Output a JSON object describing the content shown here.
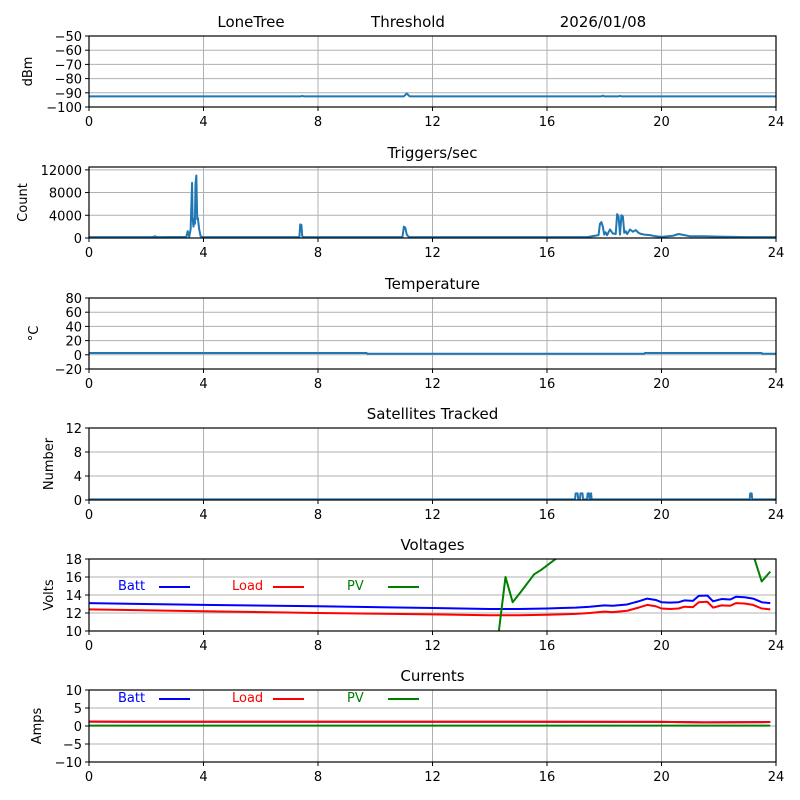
{
  "header": {
    "station": "LoneTree",
    "mode": "Threshold",
    "date": "2026/01/08"
  },
  "colors": {
    "series_default": "#1f77b4",
    "batt": "#0000ff",
    "load": "#ff0000",
    "pv": "#008000",
    "grid": "#b0b0b0"
  },
  "chart_data": [
    {
      "id": "signal",
      "type": "line",
      "title": "",
      "xlabel": "",
      "ylabel": "dBm",
      "xlim": [
        0,
        24
      ],
      "ylim": [
        -100,
        -50
      ],
      "xticks": [
        0,
        4,
        8,
        12,
        16,
        20,
        24
      ],
      "yticks": [
        -100,
        -90,
        -80,
        -70,
        -60,
        -50
      ],
      "ytick_labels": [
        "−100",
        "−90",
        "−80",
        "−70",
        "−60",
        "−50"
      ],
      "grid": true,
      "series": [
        {
          "name": "dBm",
          "color": "#1f77b4",
          "x": [
            0,
            7.4,
            7.45,
            7.5,
            11.0,
            11.05,
            11.1,
            11.15,
            11.2,
            17.9,
            17.95,
            18.0,
            18.5,
            18.55,
            18.6,
            24
          ],
          "y": [
            -92.5,
            -92.5,
            -92.2,
            -92.5,
            -92.5,
            -91.5,
            -90.5,
            -91.5,
            -92.5,
            -92.5,
            -92.0,
            -92.5,
            -92.5,
            -92.2,
            -92.5,
            -92.5
          ]
        }
      ]
    },
    {
      "id": "triggers",
      "type": "line",
      "title": "Triggers/sec",
      "xlabel": "",
      "ylabel": "Count",
      "xlim": [
        0,
        24
      ],
      "ylim": [
        0,
        12500
      ],
      "xticks": [
        0,
        4,
        8,
        12,
        16,
        20,
        24
      ],
      "yticks": [
        0,
        4000,
        8000,
        12000
      ],
      "ytick_labels": [
        "0",
        "4000",
        "8000",
        "12000"
      ],
      "grid": true,
      "series": [
        {
          "name": "Triggers/sec",
          "color": "#1f77b4",
          "x": [
            0,
            2.2,
            2.3,
            2.4,
            3.4,
            3.45,
            3.5,
            3.55,
            3.6,
            3.62,
            3.65,
            3.68,
            3.7,
            3.72,
            3.75,
            3.78,
            3.8,
            3.85,
            3.9,
            3.95,
            4.0,
            7.35,
            7.38,
            7.42,
            7.45,
            7.5,
            10.95,
            11.0,
            11.05,
            11.1,
            11.15,
            11.2,
            17.4,
            17.8,
            17.85,
            17.9,
            17.95,
            18.0,
            18.05,
            18.1,
            18.2,
            18.3,
            18.4,
            18.45,
            18.5,
            18.55,
            18.6,
            18.65,
            18.7,
            18.75,
            18.8,
            18.9,
            19.0,
            19.1,
            19.2,
            19.3,
            19.4,
            19.6,
            19.8,
            20.0,
            20.4,
            20.6,
            20.8,
            21.0,
            21.5,
            22.0,
            22.5,
            23.0,
            24
          ],
          "y": [
            150,
            150,
            300,
            150,
            200,
            1200,
            200,
            1500,
            9700,
            3500,
            2000,
            3400,
            2500,
            9500,
            11000,
            3300,
            3600,
            1500,
            300,
            200,
            150,
            150,
            2400,
            2300,
            300,
            150,
            150,
            2000,
            1800,
            600,
            300,
            150,
            150,
            500,
            2500,
            2800,
            2000,
            600,
            1000,
            500,
            1500,
            800,
            700,
            4200,
            3800,
            600,
            4000,
            3800,
            900,
            1200,
            700,
            1500,
            1100,
            1400,
            900,
            700,
            600,
            500,
            300,
            200,
            400,
            700,
            500,
            300,
            300,
            250,
            200,
            150,
            150
          ]
        }
      ]
    },
    {
      "id": "temperature",
      "type": "line",
      "title": "Temperature",
      "xlabel": "",
      "ylabel": "°C",
      "xlim": [
        0,
        24
      ],
      "ylim": [
        -20,
        80
      ],
      "xticks": [
        0,
        4,
        8,
        12,
        16,
        20,
        24
      ],
      "yticks": [
        -20,
        0,
        20,
        40,
        60,
        80
      ],
      "ytick_labels": [
        "−20",
        "0",
        "20",
        "40",
        "60",
        "80"
      ],
      "grid": true,
      "series": [
        {
          "name": "Temperature",
          "color": "#1f77b4",
          "x": [
            0,
            9.7,
            9.72,
            19.4,
            19.42,
            23.5,
            23.52,
            24
          ],
          "y": [
            2.5,
            2.5,
            1.5,
            1.5,
            2.5,
            2.5,
            1.5,
            1.5
          ]
        }
      ]
    },
    {
      "id": "satellites",
      "type": "line",
      "title": "Satellites Tracked",
      "xlabel": "",
      "ylabel": "Number",
      "xlim": [
        0,
        24
      ],
      "ylim": [
        0,
        12
      ],
      "xticks": [
        0,
        4,
        8,
        12,
        16,
        20,
        24
      ],
      "yticks": [
        0,
        4,
        8,
        12
      ],
      "ytick_labels": [
        "0",
        "4",
        "8",
        "12"
      ],
      "grid": true,
      "series": [
        {
          "name": "Satellites",
          "color": "#1f77b4",
          "x": [
            0,
            16.98,
            17.0,
            17.07,
            17.09,
            17.15,
            17.17,
            17.24,
            17.26,
            17.4,
            17.42,
            17.47,
            17.49,
            17.54,
            17.56,
            23.08,
            23.1,
            23.15,
            23.17,
            24
          ],
          "y": [
            0.1,
            0.1,
            1.1,
            1.1,
            0.1,
            0.1,
            1.1,
            1.1,
            0.1,
            0.1,
            1.1,
            1.1,
            0.1,
            1.1,
            0.1,
            0.1,
            1.1,
            1.1,
            0.1,
            0.1
          ]
        }
      ]
    },
    {
      "id": "voltages",
      "type": "line",
      "title": "Voltages",
      "xlabel": "",
      "ylabel": "Volts",
      "xlim": [
        0,
        24
      ],
      "ylim": [
        10,
        18
      ],
      "xticks": [
        0,
        4,
        8,
        12,
        16,
        20,
        24
      ],
      "yticks": [
        10,
        12,
        14,
        16,
        18
      ],
      "ytick_labels": [
        "10",
        "12",
        "14",
        "16",
        "18"
      ],
      "grid": true,
      "legend": [
        {
          "label": "Batt",
          "color": "#0000ff"
        },
        {
          "label": "Load",
          "color": "#ff0000"
        },
        {
          "label": "PV",
          "color": "#008000"
        }
      ],
      "series": [
        {
          "name": "Batt",
          "color": "#0000ff",
          "x": [
            0,
            4,
            8,
            12,
            14,
            15,
            16,
            16.5,
            17,
            17.5,
            18,
            18.3,
            18.8,
            19.2,
            19.5,
            19.8,
            20,
            20.3,
            20.6,
            20.8,
            21.1,
            21.3,
            21.6,
            21.8,
            22.1,
            22.4,
            22.6,
            22.9,
            23.2,
            23.5,
            23.8
          ],
          "y": [
            13.1,
            12.9,
            12.75,
            12.55,
            12.45,
            12.45,
            12.5,
            12.55,
            12.6,
            12.7,
            12.85,
            12.8,
            12.95,
            13.3,
            13.6,
            13.45,
            13.2,
            13.15,
            13.2,
            13.4,
            13.35,
            13.9,
            13.95,
            13.3,
            13.55,
            13.5,
            13.8,
            13.75,
            13.6,
            13.2,
            13.1
          ]
        },
        {
          "name": "Load",
          "color": "#ff0000",
          "x": [
            0,
            4,
            8,
            12,
            14,
            15,
            16,
            16.5,
            17,
            17.5,
            18,
            18.3,
            18.8,
            19.2,
            19.5,
            19.8,
            20,
            20.3,
            20.6,
            20.8,
            21.1,
            21.3,
            21.6,
            21.8,
            22.1,
            22.4,
            22.6,
            22.9,
            23.2,
            23.5,
            23.8
          ],
          "y": [
            12.4,
            12.2,
            12.0,
            11.85,
            11.75,
            11.75,
            11.8,
            11.85,
            11.9,
            12.0,
            12.15,
            12.1,
            12.25,
            12.6,
            12.9,
            12.75,
            12.5,
            12.45,
            12.5,
            12.7,
            12.65,
            13.2,
            13.25,
            12.6,
            12.85,
            12.8,
            13.1,
            13.05,
            12.9,
            12.5,
            12.4
          ]
        },
        {
          "name": "PV",
          "color": "#008000",
          "x": [
            14.3,
            14.55,
            14.8,
            15.1,
            15.55,
            15.8,
            16.3,
            16.6,
            16.9,
            23.15,
            23.5,
            23.8
          ],
          "y": [
            9.5,
            16.0,
            13.2,
            14.4,
            16.3,
            16.8,
            18.0,
            18.5,
            19.0,
            19.0,
            15.5,
            16.6
          ]
        }
      ]
    },
    {
      "id": "currents",
      "type": "line",
      "title": "Currents",
      "xlabel": "",
      "ylabel": "Amps",
      "xlim": [
        0,
        24
      ],
      "ylim": [
        -10,
        10
      ],
      "xticks": [
        0,
        4,
        8,
        12,
        16,
        20,
        24
      ],
      "yticks": [
        -10,
        -5,
        0,
        5,
        10
      ],
      "ytick_labels": [
        "−10",
        "−5",
        "0",
        "5",
        "10"
      ],
      "grid": true,
      "legend": [
        {
          "label": "Batt",
          "color": "#0000ff"
        },
        {
          "label": "Load",
          "color": "#ff0000"
        },
        {
          "label": "PV",
          "color": "#008000"
        }
      ],
      "series": [
        {
          "name": "Batt",
          "color": "#0000ff",
          "x": [
            0,
            20,
            21.5,
            23.8
          ],
          "y": [
            1.2,
            1.15,
            1.0,
            1.1
          ]
        },
        {
          "name": "Load",
          "color": "#ff0000",
          "x": [
            0,
            20,
            21.5,
            23.8
          ],
          "y": [
            1.2,
            1.15,
            1.0,
            1.1
          ]
        },
        {
          "name": "PV",
          "color": "#008000",
          "x": [
            0,
            23.8
          ],
          "y": [
            0.1,
            0.1
          ]
        }
      ]
    }
  ]
}
